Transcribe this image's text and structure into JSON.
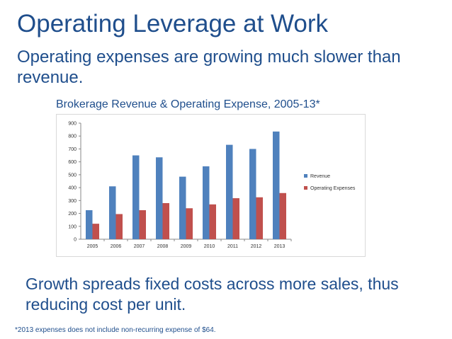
{
  "slide": {
    "title": "Operating Leverage at Work",
    "subtitle": "Operating expenses are growing much slower than revenue.",
    "chart_title": "Brokerage Revenue & Operating Expense, 2005-13*",
    "bottom_text": "Growth spreads fixed costs across more sales, thus reducing cost per unit.",
    "footnote": "*2013 expenses does not include non-recurring expense of $64."
  },
  "colors": {
    "text_blue": "#1f4e8c",
    "revenue": "#4f81bd",
    "expenses": "#c0504d",
    "axis": "#888888"
  },
  "chart_data": {
    "type": "bar",
    "title": "Brokerage Revenue & Operating Expense, 2005-13*",
    "categories": [
      "2005",
      "2006",
      "2007",
      "2008",
      "2009",
      "2010",
      "2011",
      "2012",
      "2013"
    ],
    "series": [
      {
        "name": "Revenue",
        "color": "#4f81bd",
        "values": [
          225,
          410,
          650,
          635,
          485,
          565,
          732,
          700,
          835
        ]
      },
      {
        "name": "Operating Expenses",
        "color": "#c0504d",
        "values": [
          120,
          195,
          225,
          280,
          240,
          270,
          318,
          325,
          358
        ]
      }
    ],
    "ylim": [
      0,
      900
    ],
    "yticks": [
      "0",
      "100",
      "200",
      "300",
      "400",
      "500",
      "600",
      "700",
      "800",
      "900"
    ],
    "xlabel": "",
    "ylabel": "",
    "grid": false,
    "legend_position": "right"
  }
}
